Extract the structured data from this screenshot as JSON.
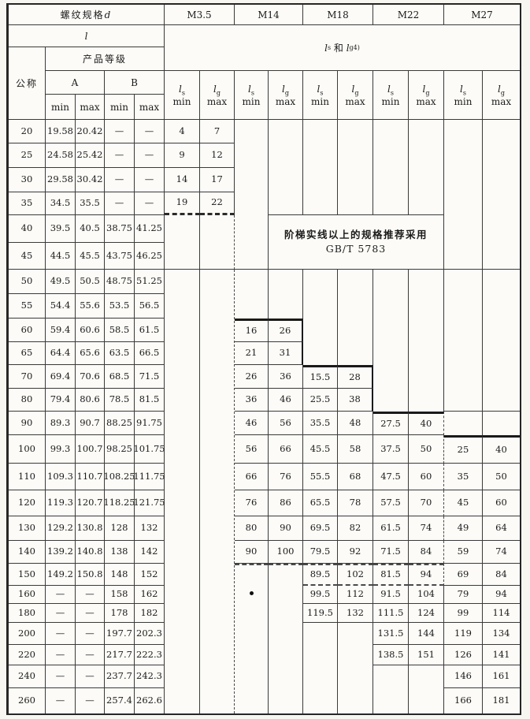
{
  "header": {
    "thread_spec": "螺纹规格",
    "thread_spec_var": "d",
    "length_var": "l",
    "product_grade": "产品等级",
    "nominal": "公称",
    "grade_a": "A",
    "grade_b": "B",
    "min_label": "min",
    "max_label": "max",
    "groups": [
      "M3.5",
      "M14",
      "M18",
      "M22",
      "M27"
    ],
    "ls_lg": {
      "sym1": "l",
      "sub1": "s",
      "conj": "和",
      "sym2": "l",
      "sub2": "g",
      "sup": "4)"
    },
    "limit_cols": [
      {
        "sym": "l",
        "sub": "s",
        "limit": "min"
      },
      {
        "sym": "l",
        "sub": "g",
        "limit": "max"
      }
    ]
  },
  "note": {
    "line1": "阶梯实线以上的规格推荐采用",
    "line2": "GB/T 5783"
  },
  "dot_marker": "artifact-dot",
  "rows": [
    {
      "size": "20",
      "a": [
        "19.58",
        "20.42"
      ],
      "b": [
        "—",
        "—"
      ],
      "m35": [
        "4",
        "7"
      ],
      "m14": null,
      "m18": null,
      "m22": null,
      "m27": null
    },
    {
      "size": "25",
      "a": [
        "24.58",
        "25.42"
      ],
      "b": [
        "—",
        "—"
      ],
      "m35": [
        "9",
        "12"
      ],
      "m14": null,
      "m18": null,
      "m22": null,
      "m27": null
    },
    {
      "size": "30",
      "a": [
        "29.58",
        "30.42"
      ],
      "b": [
        "—",
        "—"
      ],
      "m35": [
        "14",
        "17"
      ],
      "m14": null,
      "m18": null,
      "m22": null,
      "m27": null
    },
    {
      "size": "35",
      "a": [
        "34.5",
        "35.5"
      ],
      "b": [
        "—",
        "—"
      ],
      "m35": [
        "19",
        "22"
      ],
      "m14": null,
      "m18": null,
      "m22": null,
      "m27": null
    },
    {
      "size": "40",
      "a": [
        "39.5",
        "40.5"
      ],
      "b": [
        "38.75",
        "41.25"
      ],
      "m35": null,
      "m14": null,
      "m18": null,
      "m22": null,
      "m27": null
    },
    {
      "size": "45",
      "a": [
        "44.5",
        "45.5"
      ],
      "b": [
        "43.75",
        "46.25"
      ],
      "m35": null,
      "m14": null,
      "m18": null,
      "m22": null,
      "m27": null
    },
    {
      "size": "50",
      "a": [
        "49.5",
        "50.5"
      ],
      "b": [
        "48.75",
        "51.25"
      ],
      "m35": null,
      "m14": null,
      "m18": null,
      "m22": null,
      "m27": null
    },
    {
      "size": "55",
      "a": [
        "54.4",
        "55.6"
      ],
      "b": [
        "53.5",
        "56.5"
      ],
      "m35": null,
      "m14": null,
      "m18": null,
      "m22": null,
      "m27": null
    },
    {
      "size": "60",
      "a": [
        "59.4",
        "60.6"
      ],
      "b": [
        "58.5",
        "61.5"
      ],
      "m35": null,
      "m14": [
        "16",
        "26"
      ],
      "m18": null,
      "m22": null,
      "m27": null
    },
    {
      "size": "65",
      "a": [
        "64.4",
        "65.6"
      ],
      "b": [
        "63.5",
        "66.5"
      ],
      "m35": null,
      "m14": [
        "21",
        "31"
      ],
      "m18": null,
      "m22": null,
      "m27": null
    },
    {
      "size": "70",
      "a": [
        "69.4",
        "70.6"
      ],
      "b": [
        "68.5",
        "71.5"
      ],
      "m35": null,
      "m14": [
        "26",
        "36"
      ],
      "m18": [
        "15.5",
        "28"
      ],
      "m22": null,
      "m27": null
    },
    {
      "size": "80",
      "a": [
        "79.4",
        "80.6"
      ],
      "b": [
        "78.5",
        "81.5"
      ],
      "m35": null,
      "m14": [
        "36",
        "46"
      ],
      "m18": [
        "25.5",
        "38"
      ],
      "m22": null,
      "m27": null
    },
    {
      "size": "90",
      "a": [
        "89.3",
        "90.7"
      ],
      "b": [
        "88.25",
        "91.75"
      ],
      "m35": null,
      "m14": [
        "46",
        "56"
      ],
      "m18": [
        "35.5",
        "48"
      ],
      "m22": [
        "27.5",
        "40"
      ],
      "m27": null
    },
    {
      "size": "100",
      "a": [
        "99.3",
        "100.7"
      ],
      "b": [
        "98.25",
        "101.75"
      ],
      "m35": null,
      "m14": [
        "56",
        "66"
      ],
      "m18": [
        "45.5",
        "58"
      ],
      "m22": [
        "37.5",
        "50"
      ],
      "m27": [
        "25",
        "40"
      ]
    },
    {
      "size": "110",
      "a": [
        "109.3",
        "110.7"
      ],
      "b": [
        "108.25",
        "111.75"
      ],
      "m35": null,
      "m14": [
        "66",
        "76"
      ],
      "m18": [
        "55.5",
        "68"
      ],
      "m22": [
        "47.5",
        "60"
      ],
      "m27": [
        "35",
        "50"
      ]
    },
    {
      "size": "120",
      "a": [
        "119.3",
        "120.7"
      ],
      "b": [
        "118.25",
        "121.75"
      ],
      "m35": null,
      "m14": [
        "76",
        "86"
      ],
      "m18": [
        "65.5",
        "78"
      ],
      "m22": [
        "57.5",
        "70"
      ],
      "m27": [
        "45",
        "60"
      ]
    },
    {
      "size": "130",
      "a": [
        "129.2",
        "130.8"
      ],
      "b": [
        "128",
        "132"
      ],
      "m35": null,
      "m14": [
        "80",
        "90"
      ],
      "m18": [
        "69.5",
        "82"
      ],
      "m22": [
        "61.5",
        "74"
      ],
      "m27": [
        "49",
        "64"
      ]
    },
    {
      "size": "140",
      "a": [
        "139.2",
        "140.8"
      ],
      "b": [
        "138",
        "142"
      ],
      "m35": null,
      "m14": [
        "90",
        "100"
      ],
      "m18": [
        "79.5",
        "92"
      ],
      "m22": [
        "71.5",
        "84"
      ],
      "m27": [
        "59",
        "74"
      ]
    },
    {
      "size": "150",
      "a": [
        "149.2",
        "150.8"
      ],
      "b": [
        "148",
        "152"
      ],
      "m35": null,
      "m14": null,
      "m18": [
        "89.5",
        "102"
      ],
      "m22": [
        "81.5",
        "94"
      ],
      "m27": [
        "69",
        "84"
      ]
    },
    {
      "size": "160",
      "a": [
        "—",
        "—"
      ],
      "b": [
        "158",
        "162"
      ],
      "m35": null,
      "m14": null,
      "m18": [
        "99.5",
        "112"
      ],
      "m22": [
        "91.5",
        "104"
      ],
      "m27": [
        "79",
        "94"
      ]
    },
    {
      "size": "180",
      "a": [
        "—",
        "—"
      ],
      "b": [
        "178",
        "182"
      ],
      "m35": null,
      "m14": null,
      "m18": [
        "119.5",
        "132"
      ],
      "m22": [
        "111.5",
        "124"
      ],
      "m27": [
        "99",
        "114"
      ]
    },
    {
      "size": "200",
      "a": [
        "—",
        "—"
      ],
      "b": [
        "197.7",
        "202.3"
      ],
      "m35": null,
      "m14": null,
      "m18": null,
      "m22": [
        "131.5",
        "144"
      ],
      "m27": [
        "119",
        "134"
      ]
    },
    {
      "size": "220",
      "a": [
        "—",
        "—"
      ],
      "b": [
        "217.7",
        "222.3"
      ],
      "m35": null,
      "m14": null,
      "m18": null,
      "m22": [
        "138.5",
        "151"
      ],
      "m27": [
        "126",
        "141"
      ]
    },
    {
      "size": "240",
      "a": [
        "—",
        "—"
      ],
      "b": [
        "237.7",
        "242.3"
      ],
      "m35": null,
      "m14": null,
      "m18": null,
      "m22": null,
      "m27": [
        "146",
        "161"
      ]
    },
    {
      "size": "260",
      "a": [
        "—",
        "—"
      ],
      "b": [
        "257.4",
        "262.6"
      ],
      "m35": null,
      "m14": null,
      "m18": null,
      "m22": null,
      "m27": [
        "166",
        "181"
      ]
    }
  ]
}
